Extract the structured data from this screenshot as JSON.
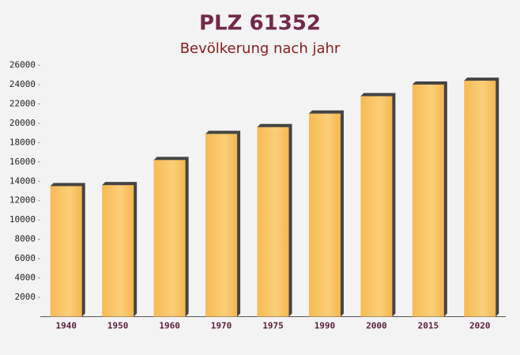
{
  "chart_data": {
    "type": "bar",
    "title": "PLZ 61352",
    "subtitle": "Bevölkerung nach jahr",
    "categories": [
      "1940",
      "1950",
      "1960",
      "1970",
      "1975",
      "1990",
      "2000",
      "2015",
      "2020"
    ],
    "values": [
      13500,
      13600,
      16200,
      18900,
      19600,
      21000,
      22800,
      24000,
      24400
    ],
    "color": "#f7b955",
    "ylim": [
      0,
      26000
    ],
    "yticks": [
      2000,
      4000,
      6000,
      8000,
      10000,
      12000,
      14000,
      16000,
      18000,
      20000,
      22000,
      24000,
      26000
    ]
  }
}
